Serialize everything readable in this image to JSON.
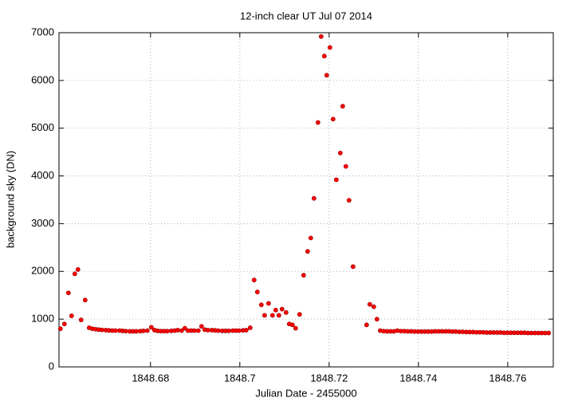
{
  "chart_data": {
    "type": "scatter",
    "title": "12-inch clear UT Jul 07 2014",
    "x_label": "Julian Date - 2455000",
    "y_label": "background sky (DN)",
    "color": "#ff0000",
    "grid": true,
    "xlim": [
      1848.6595,
      1848.7702
    ],
    "xticks": [
      1848.68,
      1848.7,
      1848.72,
      1848.74,
      1848.76
    ],
    "ylim": [
      0,
      7000
    ],
    "yticks": [
      0,
      1000,
      2000,
      3000,
      4000,
      5000,
      6000,
      7000
    ],
    "x": [
      1848.65982,
      1848.66071,
      1848.66161,
      1848.66232,
      1848.66304,
      1848.66375,
      1848.66446,
      1848.66536,
      1848.66625,
      1848.66696,
      1848.66768,
      1848.66839,
      1848.66911,
      1848.67,
      1848.67071,
      1848.67143,
      1848.67214,
      1848.67304,
      1848.67375,
      1848.67446,
      1848.67536,
      1848.67607,
      1848.67679,
      1848.67768,
      1848.67839,
      1848.67929,
      1848.68018,
      1848.68089,
      1848.68161,
      1848.68232,
      1848.68304,
      1848.68375,
      1848.68464,
      1848.68536,
      1848.68607,
      1848.68696,
      1848.68768,
      1848.68839,
      1848.68911,
      1848.68982,
      1848.69071,
      1848.69143,
      1848.69214,
      1848.69286,
      1848.69375,
      1848.69446,
      1848.69518,
      1848.69607,
      1848.69679,
      1848.6975,
      1848.69839,
      1848.69911,
      1848.69982,
      1848.70071,
      1848.70143,
      1848.70232,
      1848.70321,
      1848.70393,
      1848.70482,
      1848.70554,
      1848.70643,
      1848.70732,
      1848.70804,
      1848.70875,
      1848.70946,
      1848.71036,
      1848.71107,
      1848.71179,
      1848.7125,
      1848.71339,
      1848.71429,
      1848.71518,
      1848.71589,
      1848.71661,
      1848.7175,
      1848.71821,
      1848.71893,
      1848.71946,
      1848.72018,
      1848.72089,
      1848.72161,
      1848.7225,
      1848.72304,
      1848.72375,
      1848.72446,
      1848.72536,
      1848.72839,
      1848.72911,
      1848.73,
      1848.73071,
      1848.73143,
      1848.7322,
      1848.73297,
      1848.73374,
      1848.73451,
      1848.73528,
      1848.73605,
      1848.73682,
      1848.73759,
      1848.73836,
      1848.73913,
      1848.7399,
      1848.74067,
      1848.74144,
      1848.74221,
      1848.74298,
      1848.74375,
      1848.74452,
      1848.74529,
      1848.74606,
      1848.74683,
      1848.7476,
      1848.74837,
      1848.74914,
      1848.74991,
      1848.75068,
      1848.75145,
      1848.75222,
      1848.75299,
      1848.75376,
      1848.75453,
      1848.7553,
      1848.75607,
      1848.75684,
      1848.75761,
      1848.75838,
      1848.75915,
      1848.75992,
      1848.76069,
      1848.76146,
      1848.76223,
      1848.763,
      1848.76377,
      1848.76454,
      1848.76531,
      1848.76608,
      1848.76685,
      1848.76762,
      1848.76839,
      1848.76916
    ],
    "values": [
      800,
      900,
      1550,
      1070,
      1950,
      2040,
      985,
      1400,
      820,
      800,
      790,
      780,
      775,
      770,
      765,
      760,
      760,
      760,
      755,
      750,
      745,
      745,
      745,
      750,
      755,
      760,
      830,
      770,
      755,
      750,
      750,
      750,
      755,
      760,
      770,
      760,
      810,
      760,
      760,
      760,
      760,
      850,
      780,
      770,
      770,
      765,
      760,
      755,
      755,
      755,
      760,
      760,
      760,
      765,
      770,
      820,
      1820,
      1570,
      1300,
      1080,
      1330,
      1080,
      1190,
      1080,
      1210,
      1140,
      900,
      880,
      810,
      1100,
      1920,
      2420,
      2700,
      3530,
      5120,
      6920,
      6510,
      6110,
      6690,
      5190,
      3920,
      4480,
      5460,
      4200,
      3490,
      2100,
      880,
      1310,
      1260,
      1000,
      760,
      750,
      745,
      745,
      745,
      760,
      750,
      750,
      745,
      745,
      740,
      740,
      740,
      740,
      740,
      740,
      745,
      745,
      745,
      745,
      745,
      740,
      740,
      735,
      735,
      730,
      730,
      730,
      725,
      725,
      725,
      720,
      720,
      720,
      720,
      720,
      715,
      715,
      715,
      715,
      715,
      715,
      715,
      710,
      710,
      710,
      710,
      710,
      710,
      710
    ]
  }
}
